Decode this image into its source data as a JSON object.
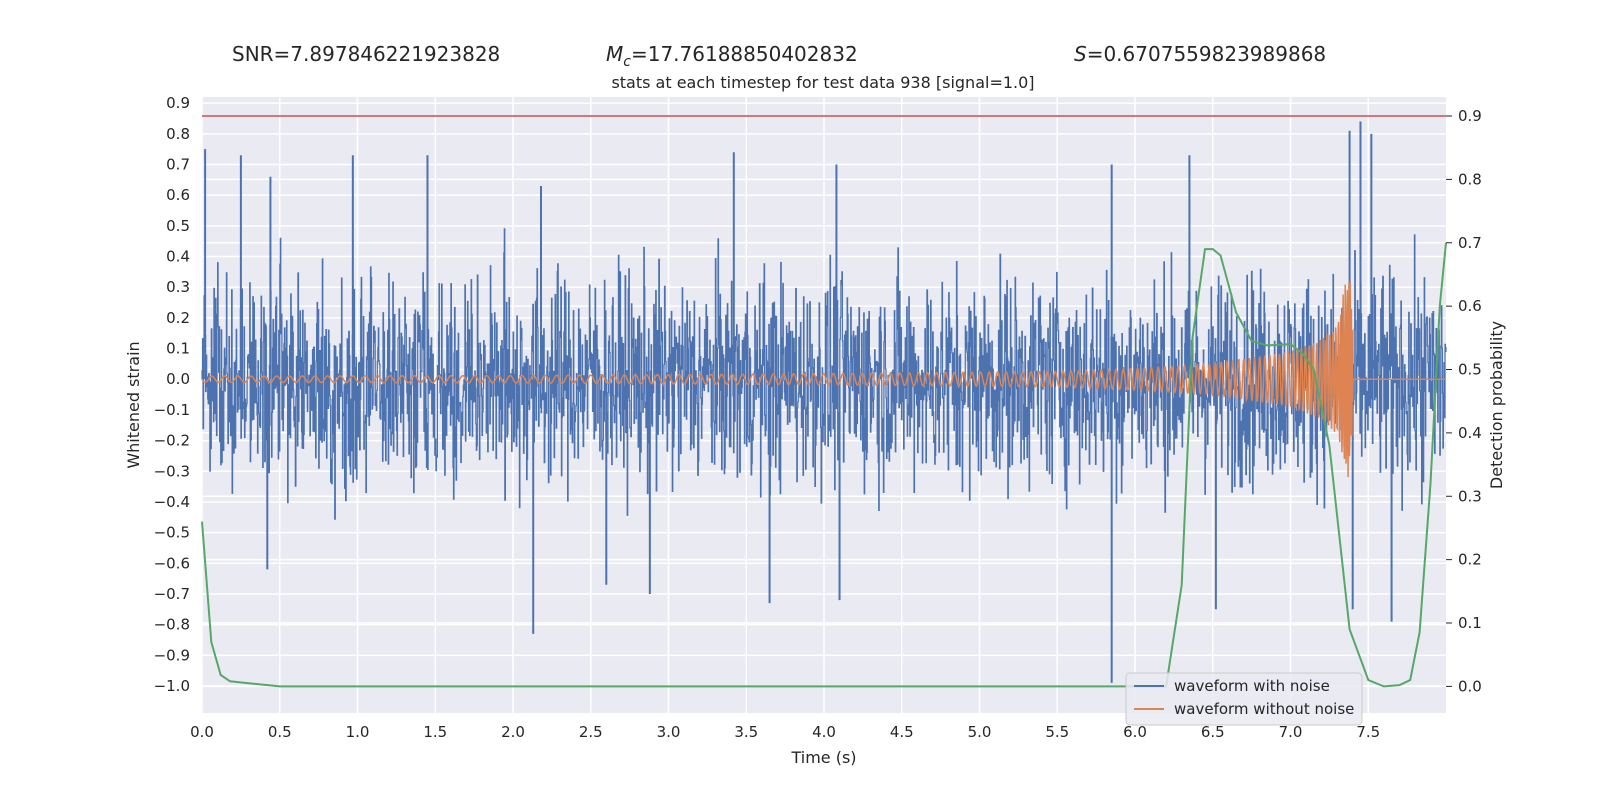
{
  "stats": {
    "snr_label": "SNR=7.897846221923828",
    "mc_symbol": "M",
    "mc_subscript": "c",
    "mc_value": "=17.76188850402832",
    "s_symbol": "S",
    "s_value": "=0.6707559823989868"
  },
  "colors": {
    "plot_bg": "#eaeaf2",
    "grid": "#ffffff",
    "noisy": "#4c72b0",
    "clean": "#dd8452",
    "probability": "#55a868",
    "threshold": "#c44e52"
  },
  "chart_data": {
    "type": "line",
    "title": "stats at each timestep for test data 938 [signal=1.0]",
    "xlabel": "Time (s)",
    "ylabel": "Whitened strain",
    "y2label": "Detection probability",
    "xlim": [
      0.0,
      8.0
    ],
    "ylim": [
      -1.088,
      0.92
    ],
    "y2lim": [
      -0.042,
      0.93
    ],
    "grid": true,
    "legend_position": "bottom-right",
    "x_ticks": [
      "0.0",
      "0.5",
      "1.0",
      "1.5",
      "2.0",
      "2.5",
      "3.0",
      "3.5",
      "4.0",
      "4.5",
      "5.0",
      "5.5",
      "6.0",
      "6.5",
      "7.0",
      "7.5"
    ],
    "y_ticks": [
      "0.9",
      "0.8",
      "0.7",
      "0.6",
      "0.5",
      "0.4",
      "0.3",
      "0.2",
      "0.1",
      "0.0",
      "−0.1",
      "−0.2",
      "−0.3",
      "−0.4",
      "−0.5",
      "−0.6",
      "−0.7",
      "−0.8",
      "−0.9",
      "−1.0"
    ],
    "y2_ticks": [
      "0.9",
      "0.8",
      "0.7",
      "0.6",
      "0.5",
      "0.4",
      "0.3",
      "0.2",
      "0.1",
      "0.0"
    ],
    "threshold_probability": 0.9,
    "series": [
      {
        "name": "waveform with noise",
        "axis": "left",
        "envelope": {
          "x": [
            0.0,
            1.0,
            2.0,
            3.0,
            4.0,
            5.0,
            6.0,
            6.5,
            7.0,
            7.4,
            7.5,
            8.0
          ],
          "typical_max": [
            0.5,
            0.5,
            0.5,
            0.5,
            0.5,
            0.5,
            0.5,
            0.5,
            0.5,
            0.55,
            0.5,
            0.45
          ],
          "typical_min": [
            -0.5,
            -0.5,
            -0.5,
            -0.5,
            -0.5,
            -0.5,
            -0.5,
            -0.5,
            -0.5,
            -0.5,
            -0.5,
            -0.5
          ]
        },
        "peaks": [
          {
            "x": 0.02,
            "y": 0.75
          },
          {
            "x": 0.25,
            "y": 0.73
          },
          {
            "x": 0.44,
            "y": 0.66
          },
          {
            "x": 0.97,
            "y": 0.73
          },
          {
            "x": 1.45,
            "y": 0.73
          },
          {
            "x": 2.18,
            "y": 0.63
          },
          {
            "x": 3.42,
            "y": 0.74
          },
          {
            "x": 4.08,
            "y": 0.7
          },
          {
            "x": 5.85,
            "y": 0.7
          },
          {
            "x": 6.35,
            "y": 0.73
          },
          {
            "x": 7.38,
            "y": 0.81
          },
          {
            "x": 7.45,
            "y": 0.84
          },
          {
            "x": 7.52,
            "y": 0.8
          }
        ],
        "troughs": [
          {
            "x": 0.42,
            "y": -0.62
          },
          {
            "x": 2.13,
            "y": -0.83
          },
          {
            "x": 2.6,
            "y": -0.67
          },
          {
            "x": 2.88,
            "y": -0.7
          },
          {
            "x": 3.65,
            "y": -0.73
          },
          {
            "x": 4.1,
            "y": -0.72
          },
          {
            "x": 5.85,
            "y": -0.99
          },
          {
            "x": 6.52,
            "y": -0.75
          },
          {
            "x": 7.4,
            "y": -0.75
          },
          {
            "x": 7.65,
            "y": -0.79
          }
        ]
      },
      {
        "name": "waveform without noise",
        "axis": "left",
        "x": [
          0.0,
          2.0,
          4.0,
          5.5,
          6.0,
          6.5,
          7.0,
          7.2,
          7.3,
          7.38,
          7.41,
          8.0
        ],
        "amplitude": [
          0.01,
          0.012,
          0.018,
          0.025,
          0.035,
          0.05,
          0.09,
          0.13,
          0.18,
          0.38,
          0.0,
          0.0
        ]
      },
      {
        "name": "detection probability",
        "axis": "right",
        "x": [
          0.0,
          0.06,
          0.12,
          0.18,
          0.3,
          0.5,
          1.0,
          5.9,
          6.2,
          6.3,
          6.37,
          6.45,
          6.5,
          6.55,
          6.65,
          6.75,
          6.85,
          7.0,
          7.08,
          7.15,
          7.25,
          7.38,
          7.5,
          7.6,
          7.7,
          7.77,
          7.83,
          7.9,
          7.96,
          8.0
        ],
        "y": [
          0.26,
          0.07,
          0.018,
          0.008,
          0.005,
          0.0,
          0.0,
          0.0,
          0.0,
          0.16,
          0.55,
          0.69,
          0.69,
          0.68,
          0.59,
          0.545,
          0.538,
          0.54,
          0.525,
          0.5,
          0.38,
          0.09,
          0.01,
          0.0,
          0.002,
          0.01,
          0.085,
          0.32,
          0.6,
          0.7
        ]
      }
    ],
    "legend": [
      "waveform with noise",
      "waveform without noise"
    ]
  }
}
